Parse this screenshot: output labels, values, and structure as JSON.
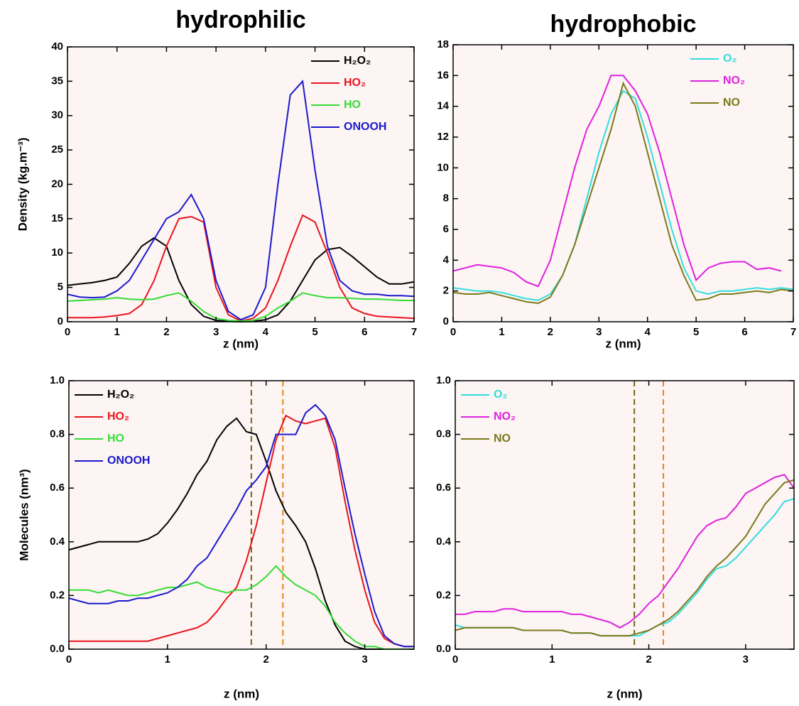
{
  "chart_data": [
    {
      "type": "line",
      "title": "hydrophilic",
      "xlabel": "z (nm)",
      "ylabel": "Density (kg.m⁻³)",
      "legend": "upper right",
      "x": [
        0,
        0.25,
        0.5,
        0.75,
        1,
        1.25,
        1.5,
        1.75,
        2,
        2.25,
        2.5,
        2.75,
        3,
        3.25,
        3.5,
        3.75,
        4,
        4.25,
        4.5,
        4.75,
        5,
        5.25,
        5.5,
        5.75,
        6,
        6.25,
        6.5,
        6.75,
        7
      ],
      "xlim": [
        0,
        7
      ],
      "xticks": [
        0,
        1,
        2,
        3,
        4,
        5,
        6,
        7
      ],
      "ylim": [
        0,
        40
      ],
      "yticks": [
        0,
        5,
        10,
        15,
        20,
        25,
        30,
        35,
        40
      ],
      "series": [
        {
          "name": "H₂O₂",
          "color": "#000000",
          "values": [
            5.3,
            5.5,
            5.7,
            6,
            6.5,
            8.5,
            11,
            12.2,
            11,
            6,
            2.5,
            0.8,
            0.2,
            0.05,
            0,
            0.05,
            0.3,
            1,
            3,
            6,
            9,
            10.5,
            10.8,
            9.5,
            8,
            6.5,
            5.5,
            5.5,
            5.8
          ]
        },
        {
          "name": "HO₂",
          "color": "#e8141c",
          "values": [
            0.6,
            0.6,
            0.6,
            0.7,
            0.9,
            1.2,
            2.5,
            6,
            11,
            15,
            15.3,
            14.5,
            5,
            1,
            0.1,
            0.5,
            2,
            6,
            11,
            15.5,
            14.5,
            10,
            5,
            2,
            1.2,
            0.8,
            0.7,
            0.6,
            0.5
          ]
        },
        {
          "name": "HO",
          "color": "#33dd33",
          "values": [
            3,
            3.1,
            3.2,
            3.3,
            3.5,
            3.3,
            3.2,
            3.3,
            3.8,
            4.2,
            3,
            1.5,
            0.5,
            0.2,
            0.1,
            0.2,
            0.8,
            2,
            3,
            4.2,
            3.8,
            3.5,
            3.5,
            3.4,
            3.3,
            3.3,
            3.2,
            3.1,
            3.1
          ]
        },
        {
          "name": "ONOOH",
          "color": "#1a1acc",
          "values": [
            4,
            3.6,
            3.5,
            3.6,
            4.5,
            6,
            9,
            12,
            15,
            16,
            18.5,
            15,
            6,
            1.5,
            0.3,
            1,
            5,
            20,
            33,
            35,
            22,
            11,
            6,
            4.5,
            4,
            4,
            3.8,
            3.8,
            3.7
          ]
        }
      ]
    },
    {
      "type": "line",
      "title": "hydrophobic",
      "xlabel": "z (nm)",
      "legend": "upper right",
      "x": [
        0,
        0.25,
        0.5,
        0.75,
        1,
        1.25,
        1.5,
        1.75,
        2,
        2.25,
        2.5,
        2.75,
        3,
        3.25,
        3.5,
        3.75,
        4,
        4.25,
        4.5,
        4.75,
        5,
        5.25,
        5.5,
        5.75,
        6,
        6.25,
        6.5,
        6.75,
        7
      ],
      "xlim": [
        0,
        7
      ],
      "xticks": [
        0,
        1,
        2,
        3,
        4,
        5,
        6,
        7
      ],
      "ylim": [
        0,
        18
      ],
      "yticks": [
        0,
        2,
        4,
        6,
        8,
        10,
        12,
        14,
        16,
        18
      ],
      "series": [
        {
          "name": "O₂",
          "color": "#33dddd",
          "values": [
            2.2,
            2.1,
            2,
            2,
            1.9,
            1.7,
            1.5,
            1.4,
            1.8,
            3,
            5,
            8,
            11,
            13.5,
            15,
            14.5,
            12,
            9,
            6,
            3.5,
            2,
            1.8,
            2,
            2,
            2.1,
            2.2,
            2.1,
            2.2,
            2.1
          ]
        },
        {
          "name": "NO₂",
          "color": "#dd22dd",
          "values": [
            3.3,
            3.5,
            3.7,
            3.6,
            3.5,
            3.2,
            2.6,
            2.3,
            4,
            7,
            10,
            12.5,
            14,
            16,
            16,
            15,
            13.5,
            11,
            8,
            5,
            2.7,
            3.5,
            3.8,
            3.9,
            3.9,
            3.4,
            3.5,
            3.3,
            null
          ]
        },
        {
          "name": "NO",
          "color": "#7a7a1a",
          "values": [
            1.9,
            1.8,
            1.8,
            1.9,
            1.7,
            1.5,
            1.3,
            1.2,
            1.6,
            3,
            5,
            7.5,
            10,
            12.5,
            15.5,
            14,
            11,
            8,
            5,
            3,
            1.4,
            1.5,
            1.8,
            1.8,
            1.9,
            2,
            1.9,
            2.1,
            2
          ]
        }
      ]
    },
    {
      "type": "line",
      "xlabel": "z (nm)",
      "ylabel": "Molecules (nm³)",
      "legend": "upper left",
      "x": [
        0,
        0.1,
        0.2,
        0.3,
        0.4,
        0.5,
        0.6,
        0.7,
        0.8,
        0.9,
        1,
        1.1,
        1.2,
        1.3,
        1.4,
        1.5,
        1.6,
        1.7,
        1.8,
        1.9,
        2,
        2.1,
        2.2,
        2.3,
        2.4,
        2.5,
        2.6,
        2.7,
        2.8,
        2.9,
        3,
        3.1,
        3.2,
        3.3,
        3.4,
        3.5
      ],
      "xlim": [
        0,
        3.5
      ],
      "xticks": [
        0,
        1,
        2,
        3
      ],
      "ylim": [
        0,
        1
      ],
      "yticks": [
        {
          "value": 0,
          "label": "0.0"
        },
        0.2,
        0.4,
        0.6,
        0.8,
        {
          "value": 1,
          "label": "1.0"
        }
      ],
      "vlines": [
        {
          "x": 1.85,
          "color": "#6b6b1a"
        },
        {
          "x": 2.17,
          "color": "#e08a1a"
        }
      ],
      "series": [
        {
          "name": "H₂O₂",
          "color": "#000000",
          "values": [
            0.37,
            0.38,
            0.39,
            0.4,
            0.4,
            0.4,
            0.4,
            0.4,
            0.41,
            0.43,
            0.47,
            0.52,
            0.58,
            0.65,
            0.7,
            0.78,
            0.83,
            0.86,
            0.81,
            0.8,
            0.7,
            0.59,
            0.51,
            0.46,
            0.4,
            0.3,
            0.18,
            0.09,
            0.03,
            0.01,
            0,
            0,
            0,
            0,
            0,
            0
          ]
        },
        {
          "name": "HO₂",
          "color": "#e8141c",
          "values": [
            0.03,
            0.03,
            0.03,
            0.03,
            0.03,
            0.03,
            0.03,
            0.03,
            0.03,
            0.04,
            0.05,
            0.06,
            0.07,
            0.08,
            0.1,
            0.14,
            0.19,
            0.23,
            0.33,
            0.46,
            0.62,
            0.78,
            0.87,
            0.85,
            0.84,
            0.85,
            0.86,
            0.75,
            0.55,
            0.37,
            0.22,
            0.1,
            0.04,
            0.02,
            0.01,
            0.01
          ]
        },
        {
          "name": "HO",
          "color": "#33dd33",
          "values": [
            0.22,
            0.22,
            0.22,
            0.21,
            0.22,
            0.21,
            0.2,
            0.2,
            0.21,
            0.22,
            0.23,
            0.23,
            0.24,
            0.25,
            0.23,
            0.22,
            0.21,
            0.22,
            0.22,
            0.24,
            0.27,
            0.31,
            0.27,
            0.24,
            0.22,
            0.2,
            0.16,
            0.1,
            0.06,
            0.03,
            0.01,
            0.01,
            0,
            0,
            0,
            0
          ]
        },
        {
          "name": "ONOOH",
          "color": "#1a1acc",
          "values": [
            0.19,
            0.18,
            0.17,
            0.17,
            0.17,
            0.18,
            0.18,
            0.19,
            0.19,
            0.2,
            0.21,
            0.23,
            0.26,
            0.31,
            0.34,
            0.4,
            0.46,
            0.52,
            0.59,
            0.63,
            0.68,
            0.8,
            0.8,
            0.8,
            0.88,
            0.91,
            0.87,
            0.78,
            0.6,
            0.43,
            0.28,
            0.14,
            0.05,
            0.02,
            0.01,
            0.01
          ]
        }
      ]
    },
    {
      "type": "line",
      "xlabel": "z (nm)",
      "legend": "upper left",
      "x": [
        0,
        0.1,
        0.2,
        0.3,
        0.4,
        0.5,
        0.6,
        0.7,
        0.8,
        0.9,
        1,
        1.1,
        1.2,
        1.3,
        1.4,
        1.5,
        1.6,
        1.7,
        1.8,
        1.9,
        2,
        2.1,
        2.2,
        2.3,
        2.4,
        2.5,
        2.6,
        2.7,
        2.8,
        2.9,
        3,
        3.1,
        3.2,
        3.3,
        3.4,
        3.5
      ],
      "xlim": [
        0,
        3.5
      ],
      "xticks": [
        0,
        1,
        2,
        3
      ],
      "ylim": [
        0,
        1
      ],
      "yticks": [
        {
          "value": 0,
          "label": "0.0"
        },
        0.2,
        0.4,
        0.6,
        0.8,
        {
          "value": 1,
          "label": "1.0"
        }
      ],
      "vlines": [
        {
          "x": 1.85,
          "color": "#6b6b1a"
        },
        {
          "x": 2.15,
          "color": "#e08a1a"
        }
      ],
      "series": [
        {
          "name": "O₂",
          "color": "#33dddd",
          "values": [
            0.09,
            0.08,
            0.08,
            0.08,
            0.08,
            0.08,
            0.08,
            0.07,
            0.07,
            0.07,
            0.07,
            0.07,
            0.06,
            0.06,
            0.06,
            0.05,
            0.05,
            0.05,
            0.05,
            0.05,
            0.07,
            0.09,
            0.1,
            0.13,
            0.17,
            0.21,
            0.26,
            0.3,
            0.31,
            0.34,
            0.38,
            0.42,
            0.46,
            0.5,
            0.55,
            0.56
          ]
        },
        {
          "name": "NO₂",
          "color": "#dd22dd",
          "values": [
            0.13,
            0.13,
            0.14,
            0.14,
            0.14,
            0.15,
            0.15,
            0.14,
            0.14,
            0.14,
            0.14,
            0.14,
            0.13,
            0.13,
            0.12,
            0.11,
            0.1,
            0.08,
            0.1,
            0.13,
            0.17,
            0.2,
            0.25,
            0.3,
            0.36,
            0.42,
            0.46,
            0.48,
            0.49,
            0.53,
            0.58,
            0.6,
            0.62,
            0.64,
            0.65,
            0.6
          ]
        },
        {
          "name": "NO",
          "color": "#7a7a1a",
          "values": [
            0.07,
            0.08,
            0.08,
            0.08,
            0.08,
            0.08,
            0.08,
            0.07,
            0.07,
            0.07,
            0.07,
            0.07,
            0.06,
            0.06,
            0.06,
            0.05,
            0.05,
            0.05,
            0.05,
            0.06,
            0.07,
            0.09,
            0.11,
            0.14,
            0.18,
            0.22,
            0.27,
            0.31,
            0.34,
            0.38,
            0.42,
            0.48,
            0.54,
            0.58,
            0.62,
            0.63
          ]
        }
      ]
    }
  ]
}
